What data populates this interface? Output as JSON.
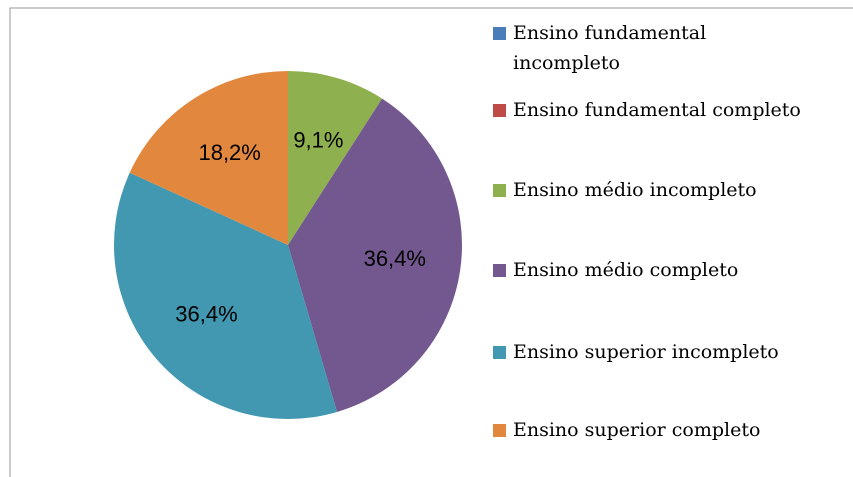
{
  "chart_data": {
    "type": "pie",
    "categories": [
      "Ensino fundamental incompleto",
      "Ensino fundamental completo",
      "Ensino médio incompleto",
      "Ensino médio completo",
      "Ensino superior incompleto",
      "Ensino superior completo"
    ],
    "values": [
      0,
      0,
      9.1,
      36.4,
      36.4,
      18.2
    ],
    "value_labels": [
      null,
      null,
      "9,1%",
      "36,4%",
      "36,4%",
      "18,2%"
    ],
    "colors": [
      "#4a7ebb",
      "#be4b48",
      "#8fb04e",
      "#72588f",
      "#4198b0",
      "#e2873e"
    ],
    "legend": "right"
  }
}
